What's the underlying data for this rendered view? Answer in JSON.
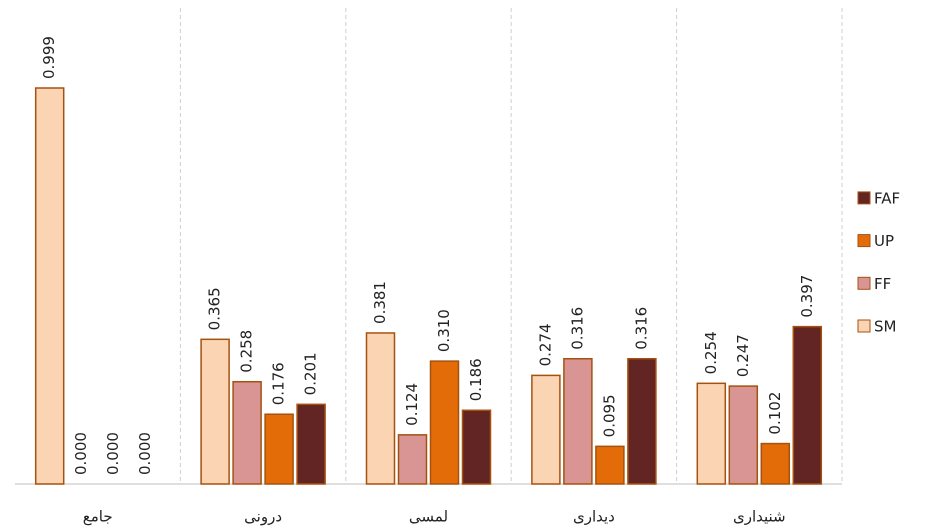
{
  "chart_data": {
    "type": "bar",
    "categories": [
      "جامع",
      "درونی",
      "لمسی",
      "دیداری",
      "شنیداری"
    ],
    "series": [
      {
        "name": "SM",
        "color": "#fbd4b4",
        "values": [
          0.999,
          0.365,
          0.381,
          0.274,
          0.254
        ],
        "value_labels": [
          "0.999",
          "0.365",
          "0.381",
          "0.274",
          "0.254"
        ]
      },
      {
        "name": "FF",
        "color": "#d99594",
        "values": [
          0,
          0.258,
          0.124,
          0.316,
          0.247
        ],
        "value_labels": [
          "0.000",
          "0.258",
          "0.124",
          "0.316",
          "0.247"
        ]
      },
      {
        "name": "UP",
        "color": "#e36c09",
        "values": [
          0,
          0.176,
          0.31,
          0.095,
          0.102
        ],
        "value_labels": [
          "0.000",
          "0.176",
          "0.310",
          "0.095",
          "0.102"
        ]
      },
      {
        "name": "FAF",
        "color": "#632523",
        "values": [
          0,
          0.201,
          0.186,
          0.316,
          0.397
        ],
        "value_labels": [
          "0.000",
          "0.201",
          "0.186",
          "0.316",
          "0.397"
        ]
      }
    ],
    "legend": "right"
  }
}
